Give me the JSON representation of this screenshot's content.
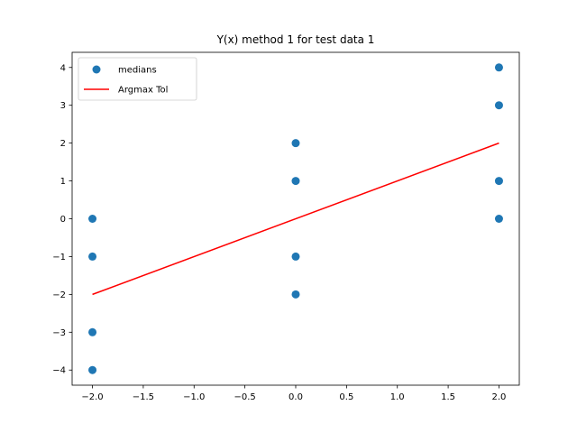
{
  "chart_data": {
    "type": "scatter",
    "title": "Y(x) method 1 for test data 1",
    "xlabel": "",
    "ylabel": "",
    "xlim": [
      -2.2,
      2.2
    ],
    "ylim": [
      -4.4,
      4.4
    ],
    "x_ticks": [
      -2.0,
      -1.5,
      -1.0,
      -0.5,
      0.0,
      0.5,
      1.0,
      1.5,
      2.0
    ],
    "x_tick_labels": [
      "−2.0",
      "−1.5",
      "−1.0",
      "−0.5",
      "0.0",
      "0.5",
      "1.0",
      "1.5",
      "2.0"
    ],
    "y_ticks": [
      -4,
      -3,
      -2,
      -1,
      0,
      1,
      2,
      3,
      4
    ],
    "y_tick_labels": [
      "−4",
      "−3",
      "−2",
      "−1",
      "0",
      "1",
      "2",
      "3",
      "4"
    ],
    "grid": false,
    "legend_position": "top-left",
    "series": [
      {
        "name": "medians",
        "kind": "scatter",
        "color": "#1f77b4",
        "points": [
          [
            -2,
            0
          ],
          [
            -2,
            -1
          ],
          [
            -2,
            -3
          ],
          [
            -2,
            -4
          ],
          [
            0,
            2
          ],
          [
            0,
            1
          ],
          [
            0,
            -1
          ],
          [
            0,
            -2
          ],
          [
            2,
            4
          ],
          [
            2,
            3
          ],
          [
            2,
            1
          ],
          [
            2,
            0
          ]
        ]
      },
      {
        "name": "Argmax Tol",
        "kind": "line",
        "color": "#ff0000",
        "points": [
          [
            -2,
            -2
          ],
          [
            2,
            2
          ]
        ]
      }
    ]
  }
}
